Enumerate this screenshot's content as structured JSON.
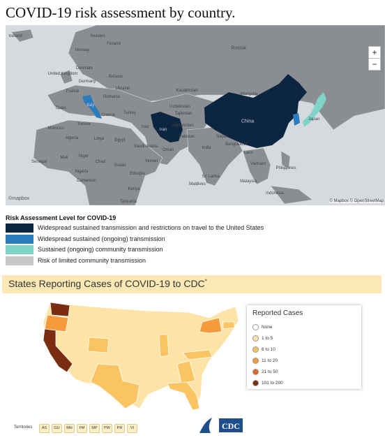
{
  "header": {
    "title": "COVID-19 risk assessment by country."
  },
  "map": {
    "labels": [
      "Iceland",
      "Sweden",
      "Finland",
      "Norway",
      "Russia",
      "United Kingdom",
      "Denmark",
      "Belarus",
      "Germany",
      "Ukraine",
      "France",
      "Romania",
      "Kazakhstan",
      "Mongolia",
      "Spain",
      "Italy",
      "Greece",
      "Turkey",
      "Uzbekistan",
      "Tajikistan",
      "Tunisia",
      "Iraq",
      "Iran",
      "Afghanistan",
      "China",
      "Japan",
      "Morocco",
      "Algeria",
      "Libya",
      "Egypt",
      "Saudi Arabia",
      "Pakistan",
      "Nepal",
      "Bangladesh",
      "Oman",
      "India",
      "Mali",
      "Niger",
      "Chad",
      "Sudan",
      "Yemen",
      "Senegal",
      "Nigeria",
      "Ethiopia",
      "Laos",
      "Vietnam",
      "Philippines",
      "Cameroon",
      "Sri Lanka",
      "Maldives",
      "Malaysia",
      "Kenya",
      "Indonesia",
      "Tanzania"
    ],
    "attribution": "© Mapbox © OpenStreetMap",
    "logo": "©mapbox",
    "zoom_in": "+",
    "zoom_out": "−"
  },
  "risk_legend": {
    "title": "Risk Assessment Level for COVID-19",
    "items": [
      {
        "label": "Widespread sustained transmission and restrictions on travel to the United States",
        "color": "#0c2540"
      },
      {
        "label": "Widespread sustained (ongoing) transmission",
        "color": "#2b7cbd"
      },
      {
        "label": "Sustained (ongoing) community transmission",
        "color": "#80d3c8"
      },
      {
        "label": "Risk of limited community transmission",
        "color": "#c8c8c8"
      }
    ]
  },
  "us_section": {
    "title": "States Reporting Cases of COVID-19 to CDC",
    "title_mark": "*",
    "legend_title": "Reported Cases",
    "legend": [
      {
        "label": "None",
        "color": "#ffffff"
      },
      {
        "label": "1 to 5",
        "color": "#fde4a6"
      },
      {
        "label": "6 to 10",
        "color": "#fbc462"
      },
      {
        "label": "11 to 20",
        "color": "#f59b3c"
      },
      {
        "label": "21 to 50",
        "color": "#e0672a"
      },
      {
        "label": "101 to 200",
        "color": "#7a2d10"
      }
    ],
    "territories_label": "Territories",
    "territories": [
      "AS",
      "GU",
      "MH",
      "FM",
      "MP",
      "PW",
      "PR",
      "VI"
    ],
    "logo_text": "CDC"
  }
}
